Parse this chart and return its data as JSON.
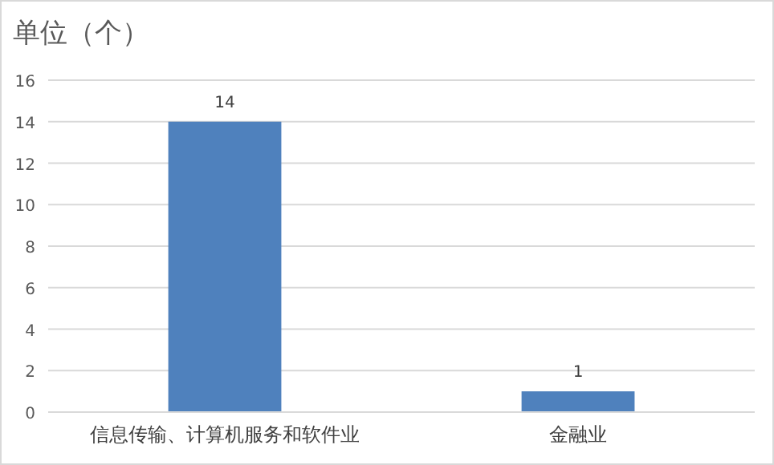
{
  "chart_data": {
    "type": "bar",
    "title": "单位（个）",
    "categories": [
      "信息传输、计算机服务和软件业",
      "金融业"
    ],
    "values": [
      14,
      1
    ],
    "color": "#4f81bd",
    "ylim": [
      0,
      16
    ],
    "yticks": [
      0,
      2,
      4,
      6,
      8,
      10,
      12,
      14,
      16
    ],
    "grid": "y",
    "data_labels": true
  }
}
